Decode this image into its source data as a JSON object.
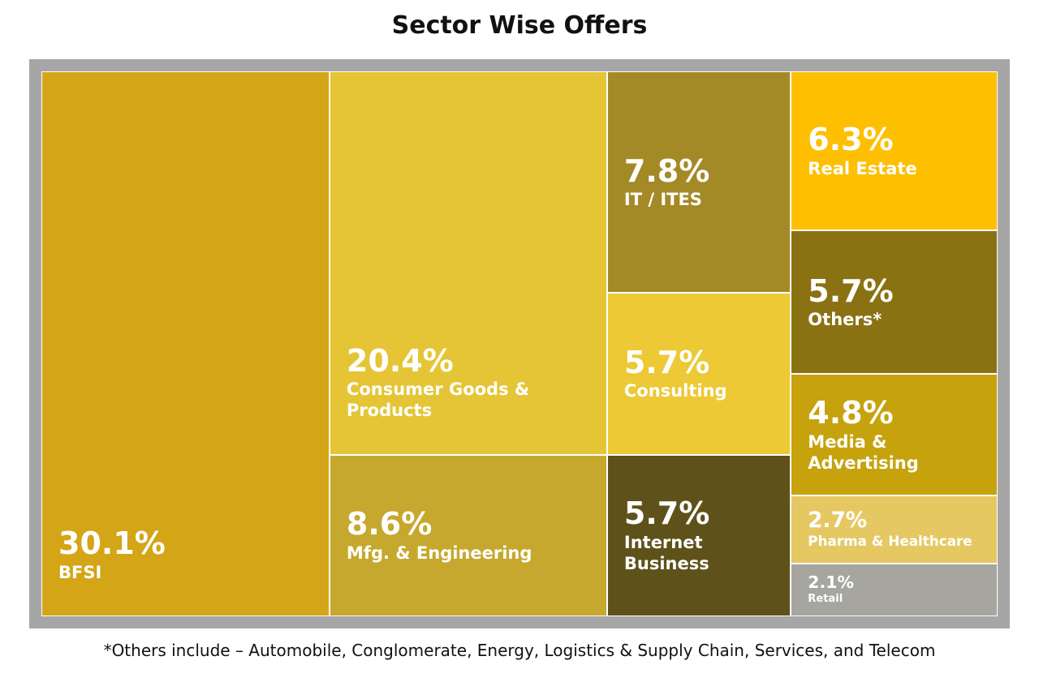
{
  "chart_data": {
    "type": "treemap",
    "title": "Sector Wise Offers",
    "categories": [
      "BFSI",
      "Consumer Goods & Products",
      "Mfg. & Engineering",
      "IT / ITES",
      "Consulting",
      "Internet Business",
      "Real Estate",
      "Others*",
      "Media & Advertising",
      "Pharma & Healthcare",
      "Retail"
    ],
    "values": [
      30.1,
      20.4,
      8.6,
      7.8,
      5.7,
      5.7,
      6.3,
      5.7,
      4.8,
      2.7,
      2.1
    ],
    "value_labels": [
      "30.1%",
      "20.4%",
      "8.6%",
      "7.8%",
      "5.7%",
      "5.7%",
      "6.3%",
      "5.7%",
      "4.8%",
      "2.7%",
      "2.1%"
    ],
    "colors": [
      "#D4A516",
      "#E5C535",
      "#C6A82E",
      "#A48A27",
      "#ECC935",
      "#5E521A",
      "#FDBF00",
      "#8A7213",
      "#C6A20D",
      "#E6C863",
      "#A6A5A0"
    ],
    "footnote": "*Others include – Automobile, Conglomerate, Energy, Logistics & Supply Chain, Services, and Telecom"
  }
}
